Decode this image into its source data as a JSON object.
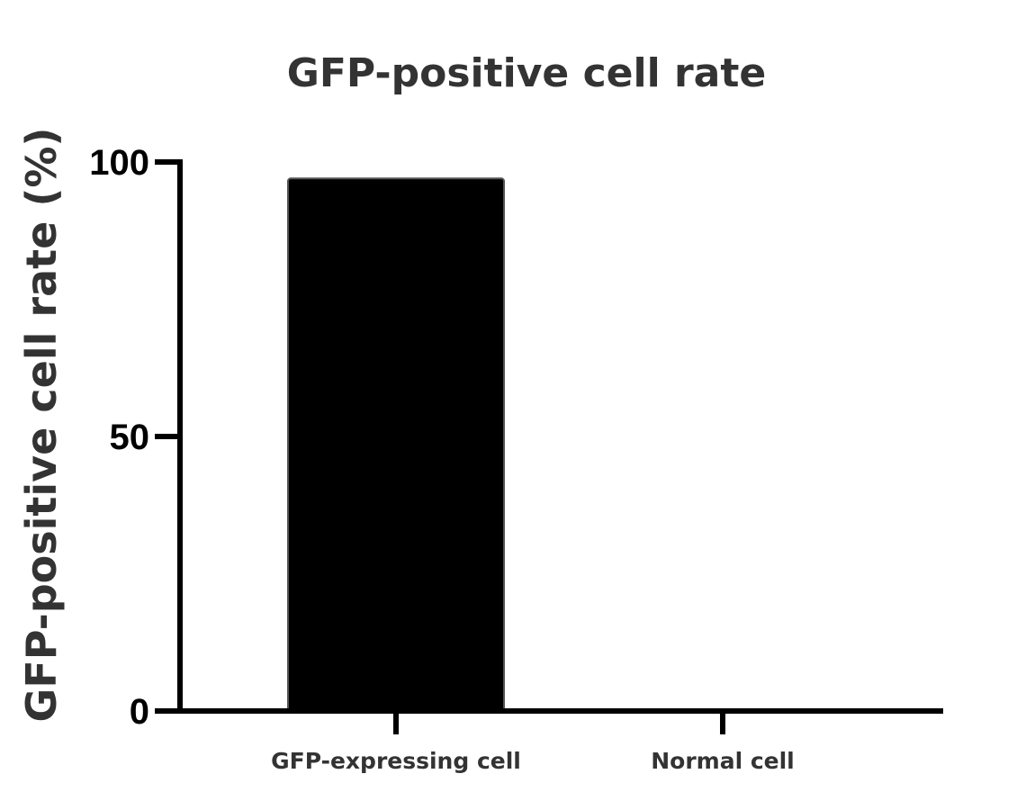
{
  "chart_data": {
    "type": "bar",
    "title": "GFP-positive cell rate",
    "xlabel": "",
    "ylabel": "GFP-positive cell rate (%)",
    "categories": [
      "GFP-expressing cell",
      "Normal cell"
    ],
    "values": [
      97,
      0
    ],
    "ylim": [
      0,
      100
    ],
    "yticks": [
      0,
      50,
      100
    ],
    "bar_color": "#000000",
    "axis_color": "#000000",
    "grid": false,
    "legend": "none"
  }
}
